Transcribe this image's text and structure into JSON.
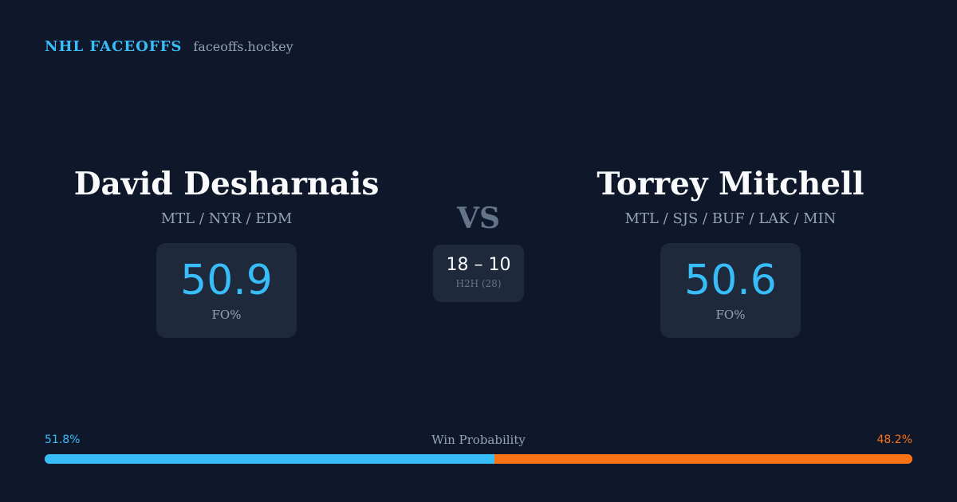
{
  "brand": {
    "name": "NHL FACEOFFS",
    "domain": "faceoffs.hockey"
  },
  "player_left": {
    "name": "David Desharnais",
    "teams": "MTL / NYR / EDM",
    "stat_value": "50.9",
    "stat_label": "FO%"
  },
  "player_right": {
    "name": "Torrey Mitchell",
    "teams": "MTL / SJS / BUF / LAK / MIN",
    "stat_value": "50.6",
    "stat_label": "FO%"
  },
  "matchup": {
    "vs_label": "VS",
    "h2h_score": "18 – 10",
    "h2h_label": "H2H (28)"
  },
  "win_probability": {
    "title": "Win Probability",
    "left_label": "51.8%",
    "right_label": "48.2%",
    "left_fraction": 0.518,
    "left_color": "#38bdf8",
    "right_color": "#f97316"
  },
  "colors": {
    "background": "#0f172a",
    "card": "#1e293b",
    "accent": "#38bdf8",
    "secondary": "#f97316"
  }
}
